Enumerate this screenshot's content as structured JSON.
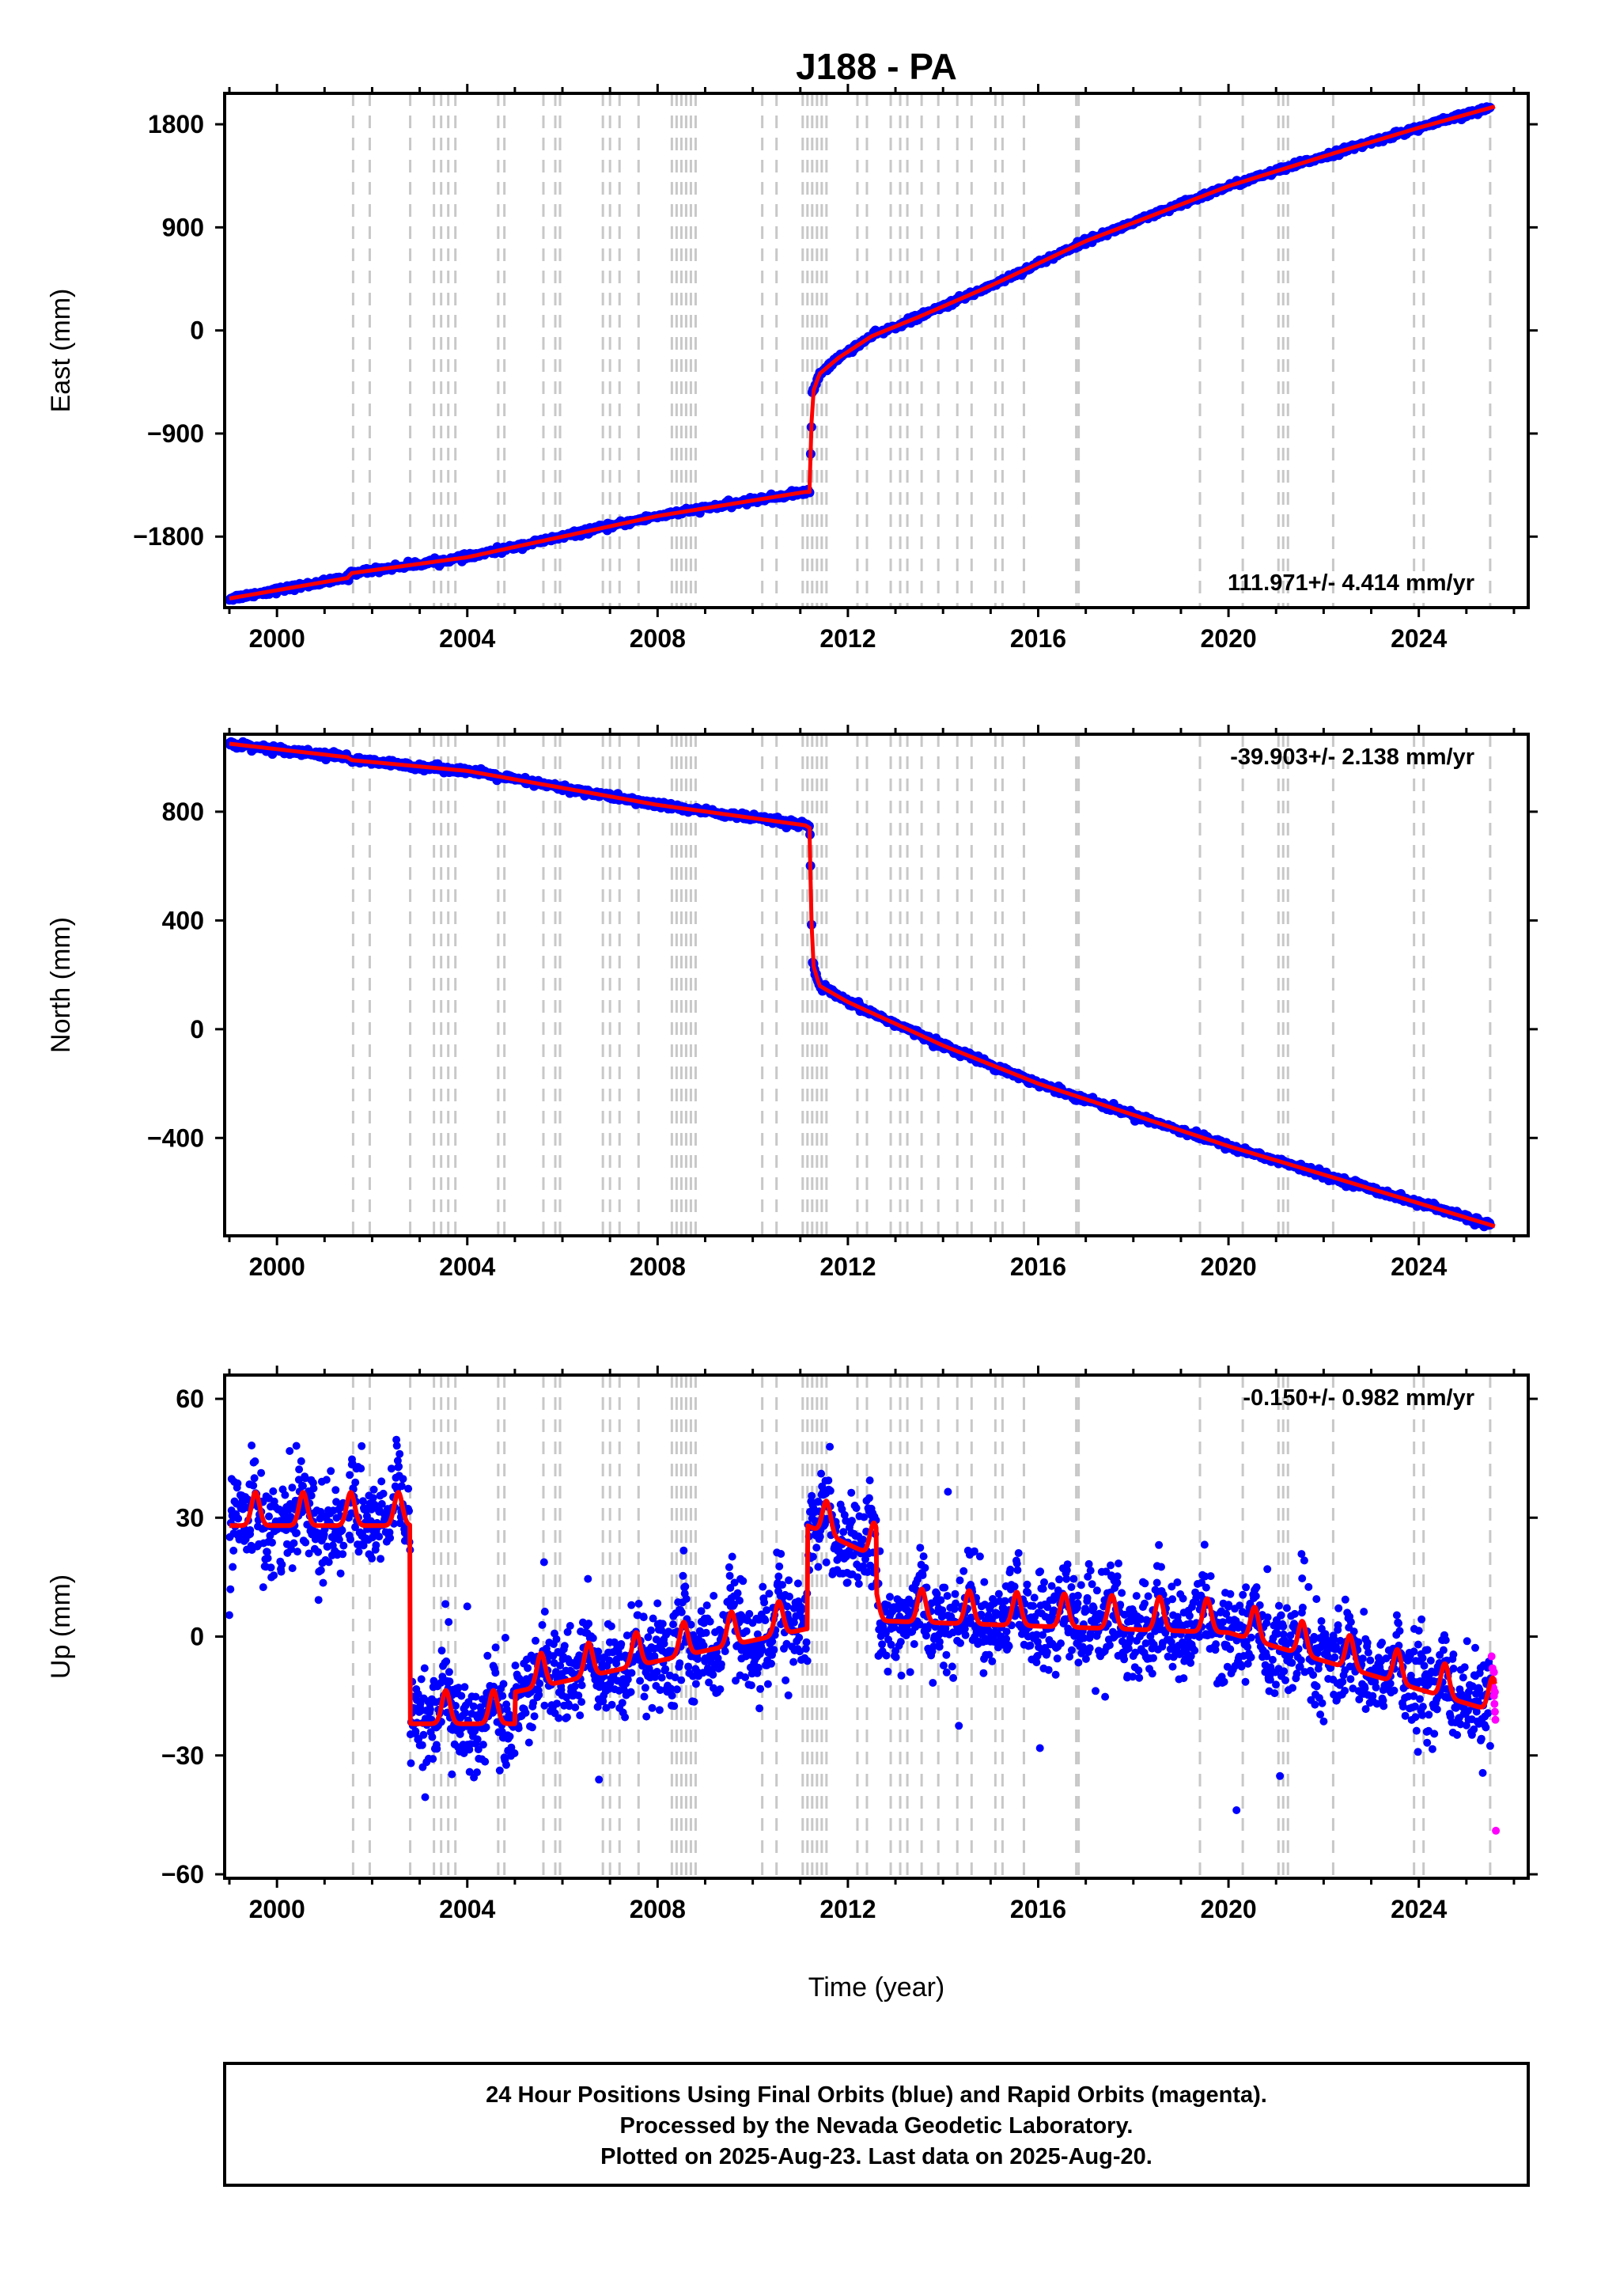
{
  "title": "J188 - PA",
  "xlabel": "Time (year)",
  "footer": {
    "lines": [
      "24 Hour Positions Using Final Orbits (blue) and Rapid Orbits (magenta).",
      "Processed by the Nevada Geodetic Laboratory.",
      "Plotted on 2025-Aug-23. Last data on 2025-Aug-20."
    ]
  },
  "colors": {
    "final_orbits": "#0000ff",
    "rapid_orbits": "#ff00ff",
    "model": "#ff0000",
    "steps": "#c8c8c8",
    "frame": "#000000"
  },
  "chart_data": [
    {
      "type": "scatter",
      "name": "east",
      "ylabel": "East (mm)",
      "xlim": [
        1998.9,
        2026.3
      ],
      "ylim": [
        -2420,
        2070
      ],
      "yticks": [
        1800,
        900,
        0,
        -900,
        -1800
      ],
      "ytick_labels": [
        "1800",
        "900",
        "0",
        "−900",
        "−1800"
      ],
      "xticks": [
        2000,
        2004,
        2008,
        2012,
        2016,
        2020,
        2024
      ],
      "xtick_labels": [
        "2000",
        "2004",
        "2008",
        "2012",
        "2016",
        "2020",
        "2024"
      ],
      "rate": "111.971+/- 4.414 mm/yr",
      "rate_position": "bottom-right",
      "grid": false,
      "trend_x": [
        1999.0,
        2001.5,
        2001.55,
        2004,
        2008,
        2011.1,
        2011.2,
        2011.25,
        2011.4,
        2011.8,
        2012.5,
        2013.5,
        2015,
        2017,
        2020,
        2022,
        2024,
        2025.6
      ],
      "trend_y": [
        -2340,
        -2160,
        -2120,
        -1980,
        -1620,
        -1410,
        -1410,
        -560,
        -380,
        -240,
        -50,
        120,
        390,
        780,
        1260,
        1520,
        1770,
        1955
      ],
      "noise_mm": 12
    },
    {
      "type": "scatter",
      "name": "north",
      "ylabel": "North (mm)",
      "xlim": [
        1998.9,
        2026.3
      ],
      "ylim": [
        -760,
        1085
      ],
      "yticks": [
        800,
        400,
        0,
        -400
      ],
      "ytick_labels": [
        "800",
        "400",
        "0",
        "−400"
      ],
      "xticks": [
        2000,
        2004,
        2008,
        2012,
        2016,
        2020,
        2024
      ],
      "xtick_labels": [
        "2000",
        "2004",
        "2008",
        "2012",
        "2016",
        "2020",
        "2024"
      ],
      "rate": "-39.903+/- 2.138 mm/yr",
      "rate_position": "top-right",
      "grid": false,
      "trend_x": [
        1999.0,
        2001.5,
        2001.55,
        2004,
        2008,
        2011.1,
        2011.2,
        2011.25,
        2011.4,
        2012,
        2013,
        2014,
        2016,
        2020,
        2024,
        2025.6
      ],
      "trend_y": [
        1050,
        1000,
        990,
        950,
        825,
        750,
        740,
        250,
        160,
        100,
        20,
        -60,
        -200,
        -430,
        -640,
        -725
      ],
      "noise_mm": 6
    },
    {
      "type": "scatter",
      "name": "up",
      "ylabel": "Up (mm)",
      "xlim": [
        1998.9,
        2026.3
      ],
      "ylim": [
        -61,
        66
      ],
      "yticks": [
        60,
        30,
        0,
        -30,
        -60
      ],
      "ytick_labels": [
        "60",
        "30",
        "0",
        "−30",
        "−60"
      ],
      "xticks": [
        2000,
        2004,
        2008,
        2012,
        2016,
        2020,
        2024
      ],
      "xtick_labels": [
        "2000",
        "2004",
        "2008",
        "2012",
        "2016",
        "2020",
        "2024"
      ],
      "rate": "-0.150+/- 0.982 mm/yr",
      "rate_position": "top-right",
      "grid": false,
      "segments": [
        {
          "x": [
            1999.0,
            2002.8
          ],
          "base": [
            30,
            30
          ]
        },
        {
          "x": [
            2002.8,
            2005.0
          ],
          "base": [
            -20,
            -20
          ]
        },
        {
          "x": [
            2005.0,
            2011.15
          ],
          "base": [
            -12,
            4
          ]
        },
        {
          "x": [
            2011.15,
            2012.6
          ],
          "base": [
            30,
            22
          ]
        },
        {
          "x": [
            2012.6,
            2020.0
          ],
          "base": [
            6,
            3
          ]
        },
        {
          "x": [
            2020.0,
            2025.6
          ],
          "base": [
            3,
            -17
          ]
        }
      ],
      "seasonal_amplitude_mm": 6,
      "noise_mm": 6,
      "rapid_points": [
        [
          2025.53,
          -5
        ],
        [
          2025.55,
          -8
        ],
        [
          2025.56,
          -11
        ],
        [
          2025.57,
          -13
        ],
        [
          2025.58,
          -15
        ],
        [
          2025.59,
          -17
        ],
        [
          2025.6,
          -19
        ],
        [
          2025.61,
          -21
        ],
        [
          2025.62,
          -49
        ],
        [
          2025.54,
          -12
        ],
        [
          2025.58,
          -9
        ],
        [
          2025.6,
          -14
        ]
      ]
    }
  ],
  "step_epochs": [
    2001.6,
    2001.95,
    2002.8,
    2003.3,
    2003.45,
    2003.6,
    2003.75,
    2004.65,
    2004.78,
    2005.6,
    2005.85,
    2005.95,
    2006.85,
    2007.0,
    2007.2,
    2007.6,
    2008.3,
    2008.4,
    2008.5,
    2008.6,
    2008.7,
    2008.8,
    2010.2,
    2010.5,
    2011.05,
    2011.15,
    2011.25,
    2011.35,
    2011.45,
    2011.55,
    2012.2,
    2012.4,
    2012.9,
    2013.1,
    2013.25,
    2013.55,
    2013.9,
    2014.3,
    2014.6,
    2015.1,
    2015.25,
    2015.7,
    2016.8,
    2016.85,
    2019.4,
    2020.3,
    2021.05,
    2021.15,
    2021.25,
    2022.2,
    2023.9,
    2024.1,
    2025.5
  ]
}
